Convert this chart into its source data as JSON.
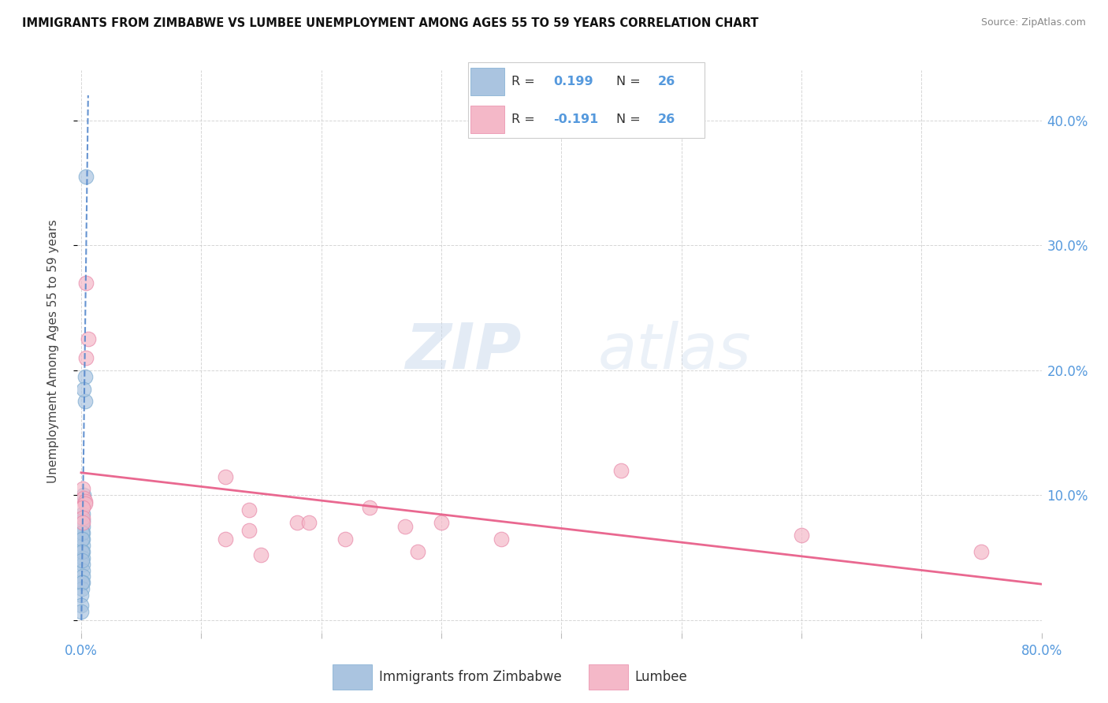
{
  "title": "IMMIGRANTS FROM ZIMBABWE VS LUMBEE UNEMPLOYMENT AMONG AGES 55 TO 59 YEARS CORRELATION CHART",
  "source": "Source: ZipAtlas.com",
  "ylabel": "Unemployment Among Ages 55 to 59 years",
  "xlim": [
    -0.003,
    0.8
  ],
  "ylim": [
    -0.01,
    0.44
  ],
  "grid_color": "#cccccc",
  "background_color": "#ffffff",
  "watermark_zip": "ZIP",
  "watermark_atlas": "atlas",
  "blue_color": "#aac4e0",
  "blue_edge": "#7aaad0",
  "pink_color": "#f4b8c8",
  "pink_edge": "#e888a8",
  "trendline_blue_color": "#5588cc",
  "trendline_pink_color": "#e8608a",
  "tick_label_color": "#5599dd",
  "blue_scatter": [
    [
      0.004,
      0.355
    ],
    [
      0.003,
      0.195
    ],
    [
      0.003,
      0.175
    ],
    [
      0.002,
      0.185
    ],
    [
      0.002,
      0.1
    ],
    [
      0.0015,
      0.085
    ],
    [
      0.0015,
      0.08
    ],
    [
      0.0015,
      0.075
    ],
    [
      0.0015,
      0.07
    ],
    [
      0.0012,
      0.065
    ],
    [
      0.0012,
      0.06
    ],
    [
      0.001,
      0.055
    ],
    [
      0.001,
      0.05
    ],
    [
      0.001,
      0.045
    ],
    [
      0.001,
      0.04
    ],
    [
      0.001,
      0.035
    ],
    [
      0.001,
      0.03
    ],
    [
      0.0008,
      0.025
    ],
    [
      0.0006,
      0.07
    ],
    [
      0.0006,
      0.065
    ],
    [
      0.0005,
      0.055
    ],
    [
      0.0005,
      0.048
    ],
    [
      0.0004,
      0.03
    ],
    [
      0.0003,
      0.02
    ],
    [
      0.0003,
      0.012
    ],
    [
      0.0002,
      0.007
    ]
  ],
  "pink_scatter": [
    [
      0.004,
      0.27
    ],
    [
      0.006,
      0.225
    ],
    [
      0.004,
      0.21
    ],
    [
      0.001,
      0.105
    ],
    [
      0.002,
      0.098
    ],
    [
      0.003,
      0.095
    ],
    [
      0.003,
      0.093
    ],
    [
      0.001,
      0.09
    ],
    [
      0.001,
      0.082
    ],
    [
      0.001,
      0.078
    ],
    [
      0.12,
      0.115
    ],
    [
      0.12,
      0.065
    ],
    [
      0.14,
      0.088
    ],
    [
      0.14,
      0.072
    ],
    [
      0.15,
      0.052
    ],
    [
      0.18,
      0.078
    ],
    [
      0.19,
      0.078
    ],
    [
      0.22,
      0.065
    ],
    [
      0.24,
      0.09
    ],
    [
      0.27,
      0.075
    ],
    [
      0.28,
      0.055
    ],
    [
      0.3,
      0.078
    ],
    [
      0.35,
      0.065
    ],
    [
      0.45,
      0.12
    ],
    [
      0.6,
      0.068
    ],
    [
      0.75,
      0.055
    ]
  ]
}
